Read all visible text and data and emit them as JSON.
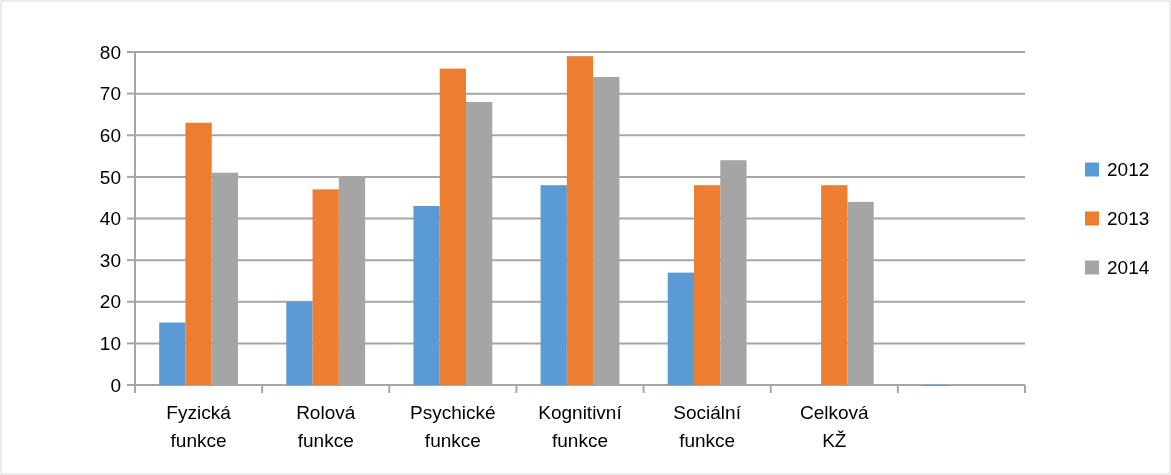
{
  "chart_data": {
    "type": "bar",
    "categories": [
      "Fyzická funkce",
      "Rolová funkce",
      "Psychické funkce",
      "Kognitivní funkce",
      "Sociální funkce",
      "Celková KŽ",
      null
    ],
    "series": [
      {
        "name": "2012",
        "color": "#5b9bd5",
        "values": [
          15,
          20,
          43,
          48,
          27,
          null,
          0
        ]
      },
      {
        "name": "2013",
        "color": "#ed7d31",
        "values": [
          63,
          47,
          76,
          79,
          48,
          48,
          null
        ]
      },
      {
        "name": "2014",
        "color": "#a5a5a5",
        "values": [
          51,
          50,
          68,
          74,
          54,
          44,
          null
        ]
      }
    ],
    "ylim": [
      0,
      80
    ],
    "yticks": [
      0,
      10,
      20,
      30,
      40,
      50,
      60,
      70,
      80
    ],
    "grid": "y",
    "legend": "right"
  }
}
